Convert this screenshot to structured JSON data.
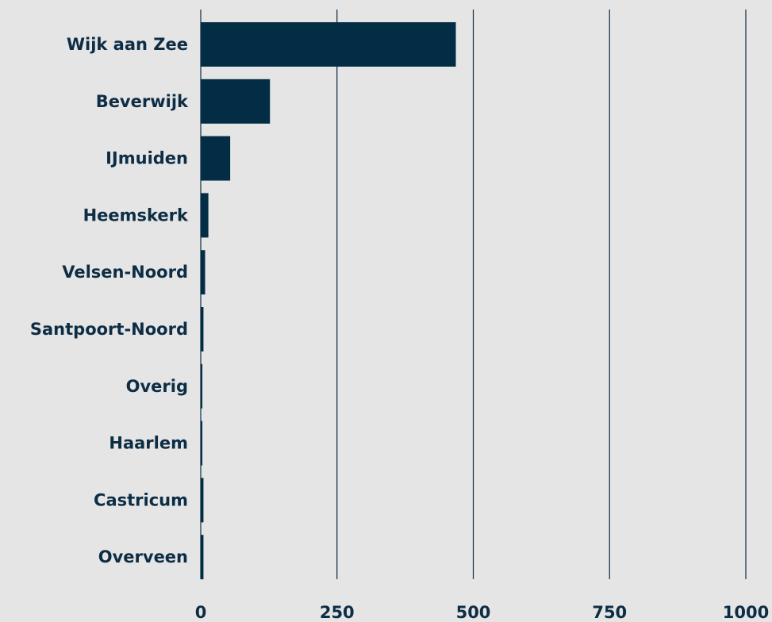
{
  "chart_data": {
    "type": "bar",
    "orientation": "horizontal",
    "title": "",
    "xlabel": "",
    "ylabel": "",
    "categories": [
      "Wijk aan Zee",
      "Beverwijk",
      "IJmuiden",
      "Heemskerk",
      "Velsen-Noord",
      "Santpoort-Noord",
      "Overig",
      "Haarlem",
      "Castricum",
      "Overveen"
    ],
    "values": [
      468,
      127,
      54,
      14,
      8,
      5,
      3,
      3,
      5,
      5
    ],
    "xlim": [
      0,
      1000
    ],
    "x_ticks": [
      0,
      250,
      500,
      750,
      1000
    ],
    "x_tick_labels": [
      "0",
      "250",
      "500",
      "750",
      "1000"
    ],
    "grid": "vertical",
    "legend": "none",
    "colors": {
      "background": "#e5e5e5",
      "bar": "#032d45",
      "text": "#0d2d45",
      "grid": "#0d2d45"
    }
  }
}
